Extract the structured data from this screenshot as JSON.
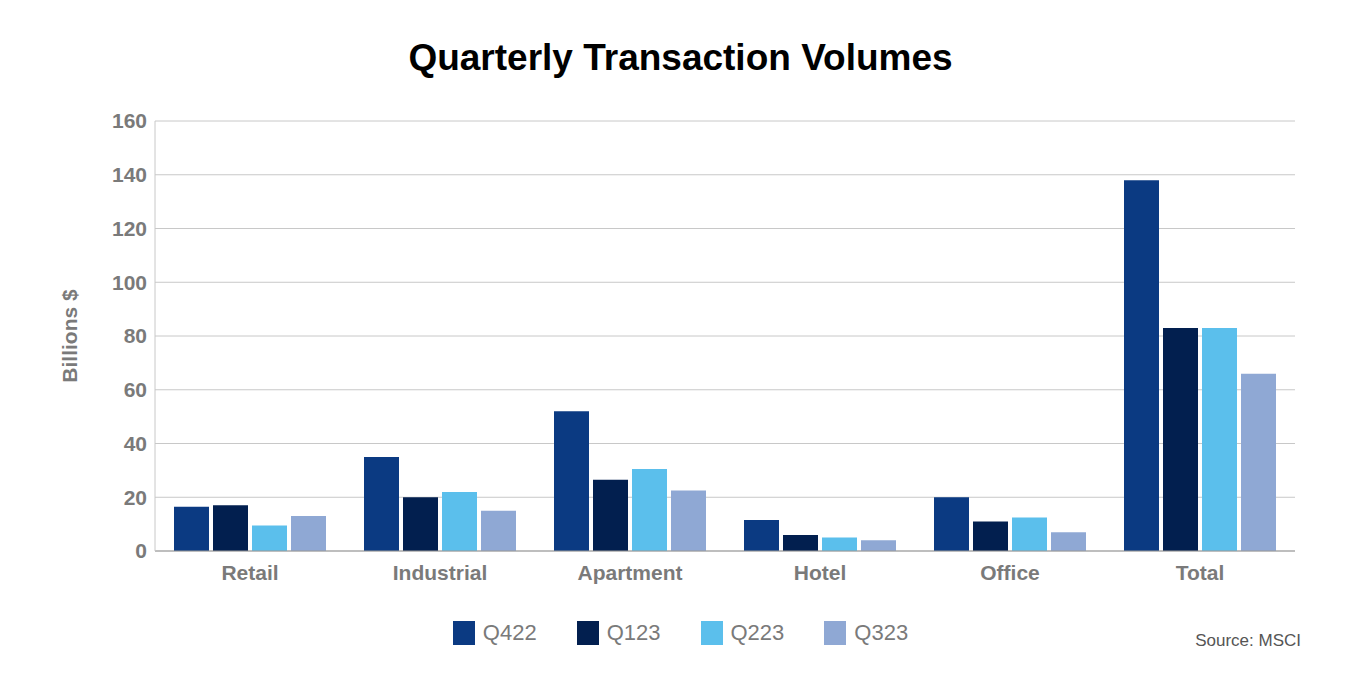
{
  "chart_data": {
    "type": "bar",
    "title": "Quarterly Transaction Volumes",
    "y_label": "Billions $",
    "source": "Source: MSCI",
    "categories": [
      "Retail",
      "Industrial",
      "Apartment",
      "Hotel",
      "Office",
      "Total"
    ],
    "series": [
      {
        "name": "Q422",
        "color": "#0b3a82",
        "values": [
          16.5,
          35,
          52,
          11.5,
          20,
          138
        ]
      },
      {
        "name": "Q123",
        "color": "#021f4f",
        "values": [
          17,
          20,
          26.5,
          6,
          11,
          83
        ]
      },
      {
        "name": "Q223",
        "color": "#5bbfec",
        "values": [
          9.5,
          22,
          30.5,
          5,
          12.5,
          83
        ]
      },
      {
        "name": "Q323",
        "color": "#8fa8d4",
        "values": [
          13,
          15,
          22.5,
          4,
          7,
          66
        ]
      }
    ],
    "ylim": [
      0,
      160
    ],
    "yticks": [
      0,
      20,
      40,
      60,
      80,
      100,
      120,
      140,
      160
    ],
    "grid": true,
    "legend": "bottom"
  }
}
